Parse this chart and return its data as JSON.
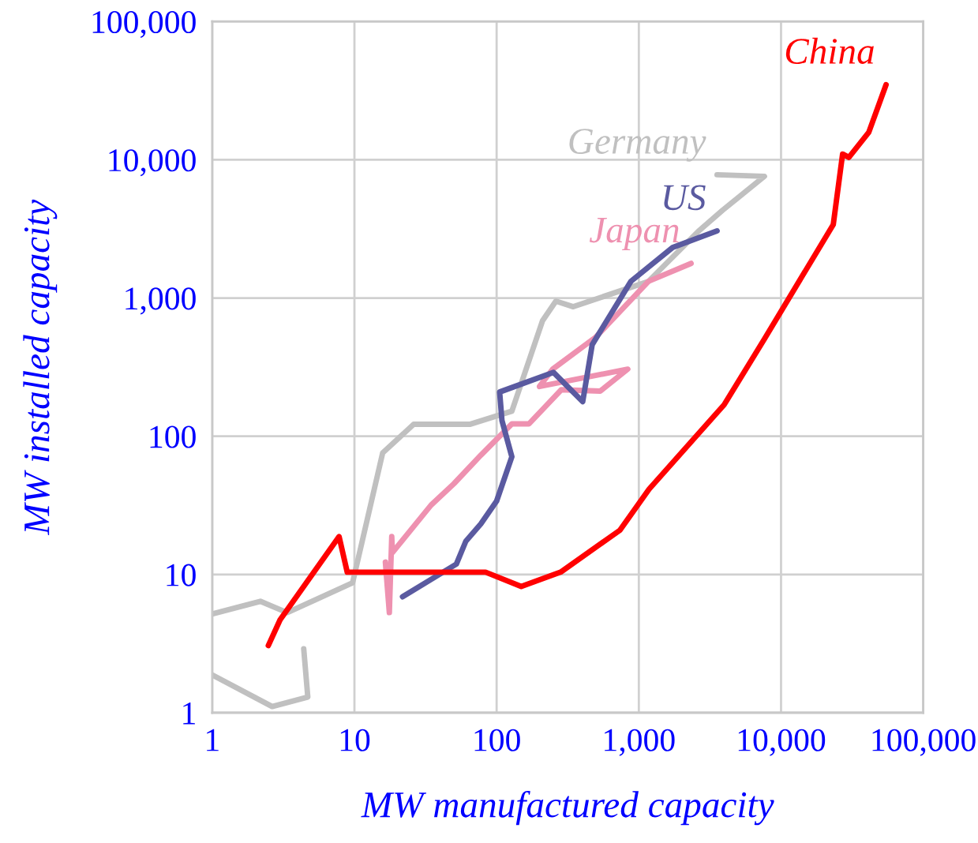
{
  "chart_data": {
    "type": "line",
    "xlabel": "MW manufactured capacity",
    "ylabel": "MW installed capacity",
    "log": "xy",
    "grid": true,
    "legend": false,
    "marker": "none",
    "line_style": "solid",
    "xlim": [
      1,
      100000
    ],
    "ylim": [
      1,
      100000
    ],
    "xticks": [
      1,
      10,
      100,
      {
        "value": 1000,
        "label": "1,000"
      },
      {
        "value": 10000,
        "label": "10,000"
      },
      {
        "value": 100000,
        "label": "100,000"
      }
    ],
    "yticks": [
      1,
      10,
      100,
      {
        "value": 1000,
        "label": "1,000"
      },
      {
        "value": 10000,
        "label": "10,000"
      },
      {
        "value": 100000,
        "label": "100,000"
      }
    ],
    "series": [
      {
        "name": "Germany",
        "color": "#c0c0c0",
        "x": [
          1,
          2.64,
          4.7,
          4.4,
          null,
          1.01,
          2.18,
          3.37,
          9.7,
          15.8,
          26.1,
          64.7,
          128,
          210,
          261,
          346,
          826,
          1170,
          2610,
          3880,
          7640,
          3550
        ],
        "values": [
          1.88,
          1.11,
          1.3,
          2.9,
          null,
          5.2,
          6.4,
          5.3,
          8.7,
          75.8,
          122,
          122,
          152,
          683,
          949,
          865,
          1170,
          1320,
          3020,
          4310,
          7590,
          7790
        ]
      },
      {
        "name": "Japan",
        "color": "#ee91b0",
        "x": [
          16.5,
          17.6,
          18.3,
          18.5,
          34.6,
          50.1,
          77.4,
          128,
          169,
          285,
          535,
          836,
          200,
          248,
          495,
          1170,
          2330
        ],
        "values": [
          12.3,
          5.3,
          18.8,
          14.4,
          31.8,
          45.4,
          72.9,
          123,
          123,
          217,
          212,
          306,
          229,
          306,
          518,
          1320,
          1780
        ]
      },
      {
        "name": "US",
        "color": "#5a5aa0",
        "x": [
          21.8,
          52.1,
          60.7,
          77.4,
          100,
          128,
          109,
          105,
          251,
          403,
          470,
          880,
          1730,
          3550
        ],
        "values": [
          6.9,
          11.9,
          17.4,
          23.2,
          34,
          71,
          130,
          209,
          290,
          178,
          460,
          1320,
          2320,
          3060
        ]
      },
      {
        "name": "China",
        "color": "#ff0000",
        "x": [
          2.48,
          3.0,
          7.8,
          8.9,
          83.6,
          149,
          282,
          736,
          1180,
          3980,
          7640,
          23300,
          27100,
          30000,
          41400,
          54800
        ],
        "values": [
          3.06,
          4.7,
          18.8,
          10.4,
          10.4,
          8.2,
          10.4,
          20.9,
          41.4,
          169,
          505,
          3400,
          11000,
          10400,
          15800,
          34900
        ]
      }
    ]
  }
}
